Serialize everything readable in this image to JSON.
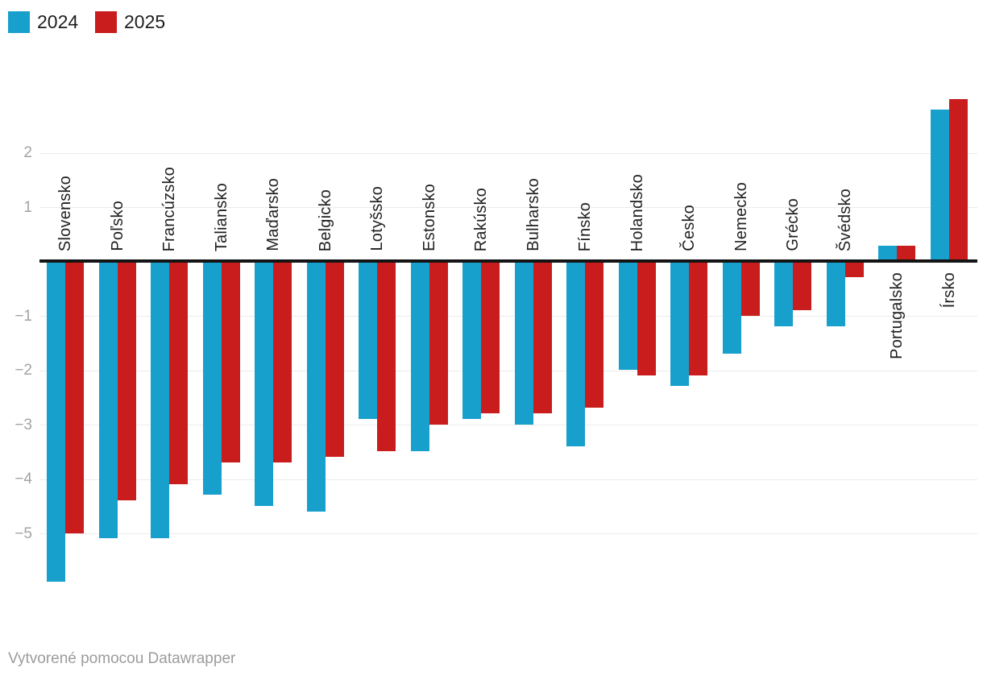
{
  "legend": {
    "items": [
      {
        "label": "2024",
        "color": "#18a0cd"
      },
      {
        "label": "2025",
        "color": "#c91d1d"
      }
    ]
  },
  "chart_data": {
    "type": "bar",
    "title": "",
    "xlabel": "",
    "ylabel": "",
    "categories": [
      "Slovensko",
      "Poľsko",
      "Francúzsko",
      "Taliansko",
      "Maďarsko",
      "Belgicko",
      "Lotyšsko",
      "Estonsko",
      "Rakúsko",
      "Bulharsko",
      "Fínsko",
      "Holandsko",
      "Česko",
      "Nemecko",
      "Grécko",
      "Švédsko",
      "Portugalsko",
      "Írsko"
    ],
    "series": [
      {
        "name": "2024",
        "color": "#18a0cd",
        "values": [
          -5.9,
          -5.1,
          -5.1,
          -4.3,
          -4.5,
          -4.6,
          -2.9,
          -3.5,
          -2.9,
          -3.0,
          -3.4,
          -2.0,
          -2.3,
          -1.7,
          -1.2,
          -1.2,
          0.3,
          2.8
        ]
      },
      {
        "name": "2025",
        "color": "#c91d1d",
        "values": [
          -5.0,
          -4.4,
          -4.1,
          -3.7,
          -3.7,
          -3.6,
          -3.5,
          -3.0,
          -2.8,
          -2.8,
          -2.7,
          -2.1,
          -2.1,
          -1.0,
          -0.9,
          -0.3,
          0.3,
          3.0
        ]
      }
    ],
    "ylim": [
      -6.2,
      3.2
    ],
    "yticks": [
      2,
      1,
      -1,
      -2,
      -3,
      -4,
      -5
    ],
    "grid": "horizontal",
    "legend_position": "top-left",
    "gridline_color": "#ebebeb",
    "axis_line_color": "#141414",
    "tick_label_color": "#a3a3a3",
    "category_label_color": "#1f1f1f"
  },
  "footer": {
    "attribution": "Vytvorené pomocou Datawrapper"
  }
}
